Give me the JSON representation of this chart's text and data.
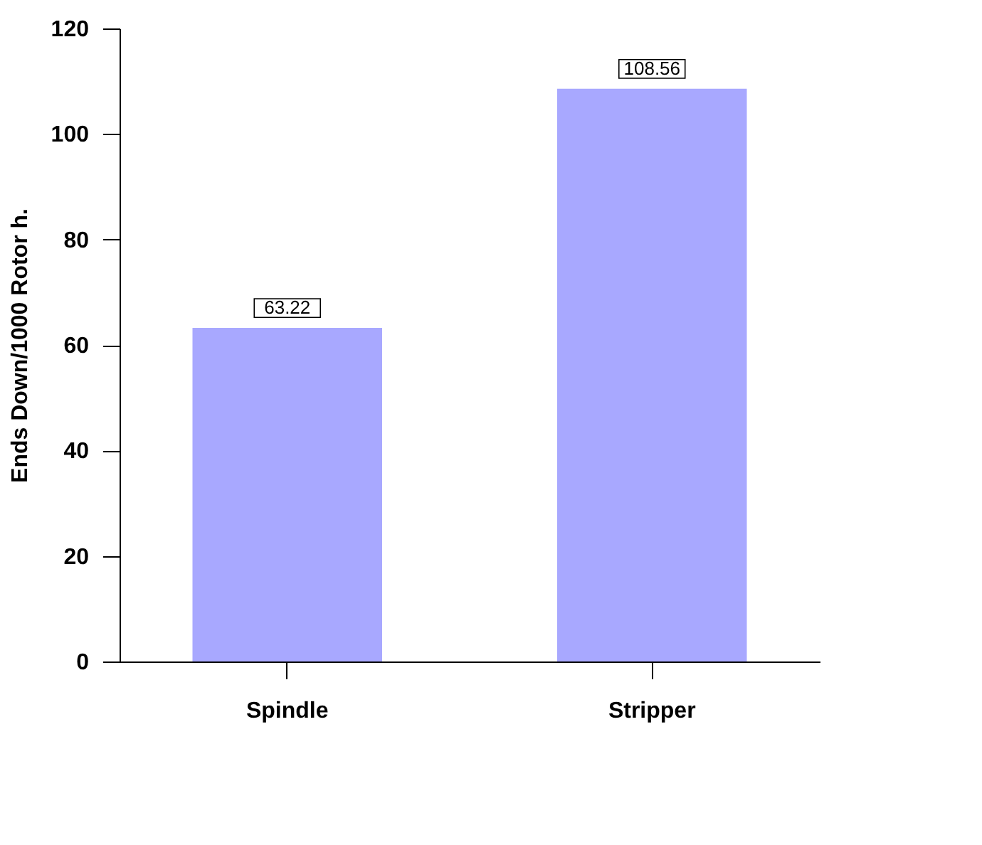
{
  "chart_data": {
    "type": "bar",
    "ylabel": "Ends Down/1000 Rotor h.",
    "categories": [
      "Spindle",
      "Stripper"
    ],
    "values": [
      63.22,
      108.56
    ],
    "color": "#a8a8ff",
    "ylim": [
      0,
      120
    ],
    "yticks": [
      0,
      20,
      40,
      60,
      80,
      100,
      120
    ],
    "data_labels": true,
    "grid": false
  }
}
